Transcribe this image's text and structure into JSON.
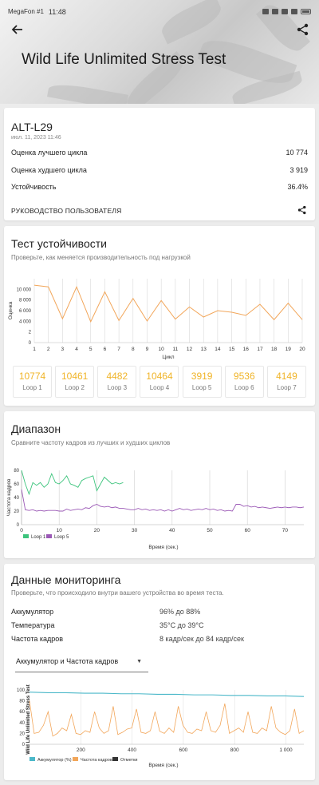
{
  "status_bar": {
    "carrier": "MegaFon #1",
    "time": "11:48"
  },
  "header": {
    "title": "Wild Life Unlimited Stress Test"
  },
  "device": {
    "name": "ALT-L29",
    "date": "июл. 11, 2023 11:46",
    "best_label": "Оценка лучшего цикла",
    "best_value": "10 774",
    "worst_label": "Оценка худшего цикла",
    "worst_value": "3 919",
    "stability_label": "Устойчивость",
    "stability_value": "36.4%",
    "guide_label": "РУКОВОДСТВО ПОЛЬЗОВАТЕЛЯ"
  },
  "stability": {
    "title": "Тест устойчивости",
    "subtitle": "Проверьте, как меняется производительность под нагрузкой",
    "loops": [
      {
        "value": "10774",
        "label": "Loop 1"
      },
      {
        "value": "10461",
        "label": "Loop 2"
      },
      {
        "value": "4482",
        "label": "Loop 3"
      },
      {
        "value": "10464",
        "label": "Loop 4"
      },
      {
        "value": "3919",
        "label": "Loop 5"
      },
      {
        "value": "9536",
        "label": "Loop 6"
      },
      {
        "value": "4149",
        "label": "Loop 7"
      }
    ]
  },
  "range": {
    "title": "Диапазон",
    "subtitle": "Сравните частоту кадров из лучших и худших циклов"
  },
  "monitoring": {
    "title": "Данные мониторинга",
    "subtitle": "Проверьте, что происходило внутри вашего устройства во время теста.",
    "rows": [
      {
        "label": "Аккумулятор",
        "value": "96% до 88%"
      },
      {
        "label": "Температура",
        "value": "35°C до 39°C"
      },
      {
        "label": "Частота кадров",
        "value": "8 кадр/сек до 84 кадр/сек"
      }
    ],
    "dropdown_label": "Аккумулятор и Частота кадров"
  },
  "colors": {
    "accent": "#f0b428",
    "line": "#f2a65a",
    "loop1": "#3cc47c",
    "loop5": "#9b59b6",
    "battery": "#4bb8c9"
  },
  "chart_data": [
    {
      "type": "line",
      "xlabel": "Цикл",
      "ylabel": "Оценка",
      "ylim": [
        0,
        12000
      ],
      "x": [
        1,
        2,
        3,
        4,
        5,
        6,
        7,
        8,
        9,
        10,
        11,
        12,
        13,
        14,
        15,
        16,
        17,
        18,
        19,
        20
      ],
      "yticks": [
        "0",
        "2",
        "4 000",
        "6 000",
        "8 000",
        "10 000"
      ],
      "series": [
        {
          "name": "",
          "values": [
            10774,
            10461,
            4482,
            10464,
            3919,
            9536,
            4149,
            8300,
            4050,
            7900,
            4400,
            6700,
            4800,
            6000,
            5700,
            5100,
            7200,
            4300,
            7400,
            4300
          ]
        }
      ]
    },
    {
      "type": "line",
      "xlabel": "Время (сек.)",
      "ylabel": "Частота кадров",
      "xlim": [
        0,
        75
      ],
      "ylim": [
        0,
        80
      ],
      "xticks": [
        0,
        10,
        20,
        30,
        40,
        50,
        60,
        70
      ],
      "yticks": [
        0,
        20,
        40,
        60,
        80
      ],
      "legend": [
        "Loop 1",
        "Loop 5"
      ],
      "series": [
        {
          "name": "Loop 1",
          "values": [
            80,
            60,
            45,
            62,
            58,
            62,
            55,
            60,
            75,
            62,
            60,
            65,
            72,
            60,
            58,
            55,
            65,
            68,
            70,
            72,
            50,
            60,
            70,
            65,
            60,
            62,
            60,
            62
          ]
        },
        {
          "name": "Loop 5",
          "values": [
            52,
            22,
            21,
            22,
            20,
            21,
            20,
            21,
            21,
            21,
            20,
            20,
            23,
            21,
            22,
            23,
            22,
            25,
            24,
            28,
            30,
            27,
            26,
            27,
            25,
            26,
            24,
            24,
            23,
            22,
            22,
            24,
            22,
            23,
            21,
            22,
            21,
            22,
            20,
            22,
            20,
            22,
            24,
            22,
            23,
            21,
            22,
            23,
            22,
            24,
            22,
            23,
            21,
            22,
            20,
            21,
            20,
            30,
            30,
            27,
            28,
            26,
            27,
            25,
            26,
            25,
            24,
            25,
            26,
            25,
            26,
            25,
            26,
            26,
            25,
            26
          ]
        }
      ]
    },
    {
      "type": "line",
      "xlabel": "Время (сек.)",
      "ylabel": "Wild Life Unlimited Stress Test",
      "xlim": [
        0,
        1070
      ],
      "ylim": [
        0,
        100
      ],
      "xticks": [
        "200",
        "400",
        "600",
        "800",
        "1 000"
      ],
      "yticks": [
        0,
        20,
        40,
        60,
        80,
        100
      ],
      "legend": [
        "Аккумулятор (%)",
        "Частота кадров",
        "Отметки"
      ],
      "series": [
        {
          "name": "Аккумулятор (%)",
          "values": [
            96,
            95,
            95,
            94,
            94,
            93,
            93,
            92,
            92,
            91,
            91,
            90,
            90,
            89,
            89,
            88
          ]
        },
        {
          "name": "Частота кадров",
          "values": [
            80,
            20,
            22,
            35,
            60,
            15,
            20,
            30,
            25,
            55,
            20,
            18,
            25,
            22,
            60,
            30,
            20,
            25,
            70,
            18,
            22,
            28,
            30,
            65,
            22,
            20,
            25,
            60,
            24,
            20,
            30,
            22,
            70,
            35,
            22,
            20,
            28,
            25,
            60,
            25,
            22,
            35,
            75,
            20,
            25,
            30,
            22,
            60,
            22,
            20,
            30,
            25,
            70,
            30,
            22,
            18,
            25,
            65,
            20,
            25
          ]
        }
      ]
    }
  ]
}
